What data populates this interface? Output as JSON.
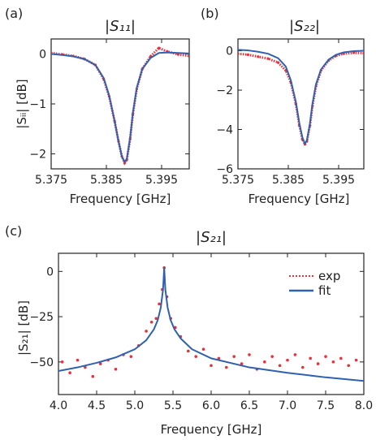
{
  "colors": {
    "exp": "#e8313a",
    "fit": "#3060b0",
    "axis": "#222222"
  },
  "panels": [
    {
      "id": "a",
      "label": "(a)",
      "title": "|S₁₁|",
      "ylabel": "|Sᵢᵢ| [dB]",
      "xlabel": "Frequency [GHz]"
    },
    {
      "id": "b",
      "label": "(b)",
      "title": "|S₂₂|",
      "ylabel": "",
      "xlabel": "Frequency [GHz]"
    },
    {
      "id": "c",
      "label": "(c)",
      "title": "|S₂₁|",
      "ylabel": "|S₂₁| [dB]",
      "xlabel": "Frequency [GHz]",
      "legend": {
        "exp": "exp",
        "fit": "fit",
        "position": "top-right"
      }
    }
  ],
  "chart_data": [
    {
      "type": "line",
      "panel": "a",
      "title": "|S₁₁|",
      "xlabel": "Frequency [GHz]",
      "ylabel": "|Sᵢᵢ| [dB]",
      "xlim": [
        5.375,
        5.4
      ],
      "ylim": [
        -2.3,
        0.3
      ],
      "xticks": [
        5.375,
        5.385,
        5.395
      ],
      "xtick_labels": [
        "5.375",
        "5.385",
        "5.395"
      ],
      "yticks": [
        0,
        -1,
        -2
      ],
      "ytick_labels": [
        "0",
        "−1",
        "−2"
      ],
      "grid": false,
      "series": [
        {
          "name": "exp",
          "style": "dotted",
          "x": [
            5.375,
            5.377,
            5.379,
            5.381,
            5.383,
            5.3845,
            5.3855,
            5.3865,
            5.3872,
            5.3878,
            5.3883,
            5.3887,
            5.3893,
            5.3898,
            5.3905,
            5.3915,
            5.393,
            5.3945,
            5.396,
            5.398,
            5.4
          ],
          "y": [
            0.02,
            -0.01,
            -0.04,
            -0.1,
            -0.22,
            -0.5,
            -0.85,
            -1.35,
            -1.75,
            -2.05,
            -2.18,
            -2.12,
            -1.7,
            -1.2,
            -0.7,
            -0.3,
            -0.05,
            0.12,
            0.05,
            -0.01,
            -0.04
          ]
        },
        {
          "name": "fit",
          "style": "solid",
          "x": [
            5.375,
            5.377,
            5.379,
            5.381,
            5.383,
            5.3845,
            5.3855,
            5.3865,
            5.3872,
            5.3878,
            5.3883,
            5.3887,
            5.3893,
            5.3898,
            5.3905,
            5.3915,
            5.393,
            5.3945,
            5.396,
            5.398,
            5.4
          ],
          "y": [
            0.0,
            -0.02,
            -0.05,
            -0.1,
            -0.22,
            -0.48,
            -0.83,
            -1.35,
            -1.75,
            -2.05,
            -2.16,
            -2.1,
            -1.68,
            -1.18,
            -0.68,
            -0.3,
            -0.08,
            0.02,
            0.03,
            0.02,
            0.01
          ]
        }
      ]
    },
    {
      "type": "line",
      "panel": "b",
      "title": "|S₂₂|",
      "xlabel": "Frequency [GHz]",
      "ylabel": "",
      "xlim": [
        5.375,
        5.4
      ],
      "ylim": [
        -6.0,
        0.6
      ],
      "xticks": [
        5.375,
        5.385,
        5.395
      ],
      "xtick_labels": [
        "5.375",
        "5.385",
        "5.395"
      ],
      "yticks": [
        0,
        -2,
        -4,
        -6
      ],
      "ytick_labels": [
        "0",
        "−2",
        "−4",
        "−6"
      ],
      "grid": false,
      "series": [
        {
          "name": "exp",
          "style": "dotted",
          "x": [
            5.375,
            5.377,
            5.379,
            5.381,
            5.383,
            5.3845,
            5.3855,
            5.3865,
            5.3872,
            5.3878,
            5.3883,
            5.3887,
            5.3893,
            5.3898,
            5.3905,
            5.3915,
            5.393,
            5.3945,
            5.396,
            5.398,
            5.4
          ],
          "y": [
            -0.15,
            -0.2,
            -0.3,
            -0.4,
            -0.6,
            -1.0,
            -1.6,
            -2.7,
            -3.8,
            -4.5,
            -4.75,
            -4.6,
            -3.8,
            -2.8,
            -1.8,
            -1.0,
            -0.5,
            -0.25,
            -0.15,
            -0.1,
            -0.12
          ]
        },
        {
          "name": "fit",
          "style": "solid",
          "x": [
            5.375,
            5.377,
            5.379,
            5.381,
            5.383,
            5.3845,
            5.3855,
            5.3865,
            5.3872,
            5.3878,
            5.3883,
            5.3887,
            5.3893,
            5.3898,
            5.3905,
            5.3915,
            5.393,
            5.3945,
            5.396,
            5.398,
            5.4
          ],
          "y": [
            0.05,
            0.02,
            -0.05,
            -0.15,
            -0.38,
            -0.8,
            -1.5,
            -2.6,
            -3.7,
            -4.4,
            -4.72,
            -4.55,
            -3.7,
            -2.7,
            -1.7,
            -0.95,
            -0.45,
            -0.2,
            -0.08,
            -0.02,
            0.0
          ]
        }
      ]
    },
    {
      "type": "scatter",
      "panel": "c",
      "title": "|S₂₁|",
      "xlabel": "Frequency [GHz]",
      "ylabel": "|S₂₁| [dB]",
      "xlim": [
        4.0,
        8.0
      ],
      "ylim": [
        -68,
        10
      ],
      "xticks": [
        4.0,
        4.5,
        5.0,
        5.5,
        6.0,
        6.5,
        7.0,
        7.5,
        8.0
      ],
      "xtick_labels": [
        "4.0",
        "4.5",
        "5.0",
        "5.5",
        "6.0",
        "6.5",
        "7.0",
        "7.5",
        "8.0"
      ],
      "yticks": [
        0,
        -25,
        -50
      ],
      "ytick_labels": [
        "0",
        "−25",
        "−50"
      ],
      "grid": false,
      "legend_position": "top-right",
      "series": [
        {
          "name": "exp",
          "style": "dotted",
          "x": [
            4.05,
            4.15,
            4.25,
            4.35,
            4.45,
            4.55,
            4.65,
            4.75,
            4.85,
            4.95,
            5.05,
            5.15,
            5.22,
            5.28,
            5.32,
            5.36,
            5.385,
            5.42,
            5.47,
            5.53,
            5.6,
            5.7,
            5.8,
            5.9,
            6.0,
            6.1,
            6.2,
            6.3,
            6.4,
            6.5,
            6.6,
            6.7,
            6.8,
            6.9,
            7.0,
            7.1,
            7.2,
            7.3,
            7.4,
            7.5,
            7.6,
            7.7,
            7.8,
            7.9
          ],
          "y": [
            -50,
            -56,
            -49,
            -53,
            -58,
            -51,
            -49,
            -54,
            -46,
            -47,
            -41,
            -33,
            -28,
            -26,
            -18,
            -10,
            2,
            -14,
            -26,
            -31,
            -36,
            -44,
            -47,
            -43,
            -52,
            -48,
            -53,
            -47,
            -51,
            -46,
            -54,
            -50,
            -47,
            -52,
            -49,
            -46,
            -53,
            -48,
            -51,
            -47,
            -50,
            -48,
            -52,
            -49
          ]
        },
        {
          "name": "fit",
          "style": "solid",
          "x": [
            4.0,
            4.25,
            4.5,
            4.75,
            5.0,
            5.15,
            5.25,
            5.3,
            5.34,
            5.37,
            5.385,
            5.4,
            5.43,
            5.47,
            5.52,
            5.6,
            5.75,
            6.0,
            6.5,
            7.0,
            7.5,
            8.0
          ],
          "y": [
            -55,
            -53,
            -50.5,
            -47.5,
            -43,
            -38,
            -32,
            -27,
            -20,
            -10,
            2,
            -10,
            -20,
            -27,
            -32,
            -37,
            -43,
            -48,
            -53,
            -56,
            -58.5,
            -60.5
          ]
        }
      ]
    }
  ]
}
